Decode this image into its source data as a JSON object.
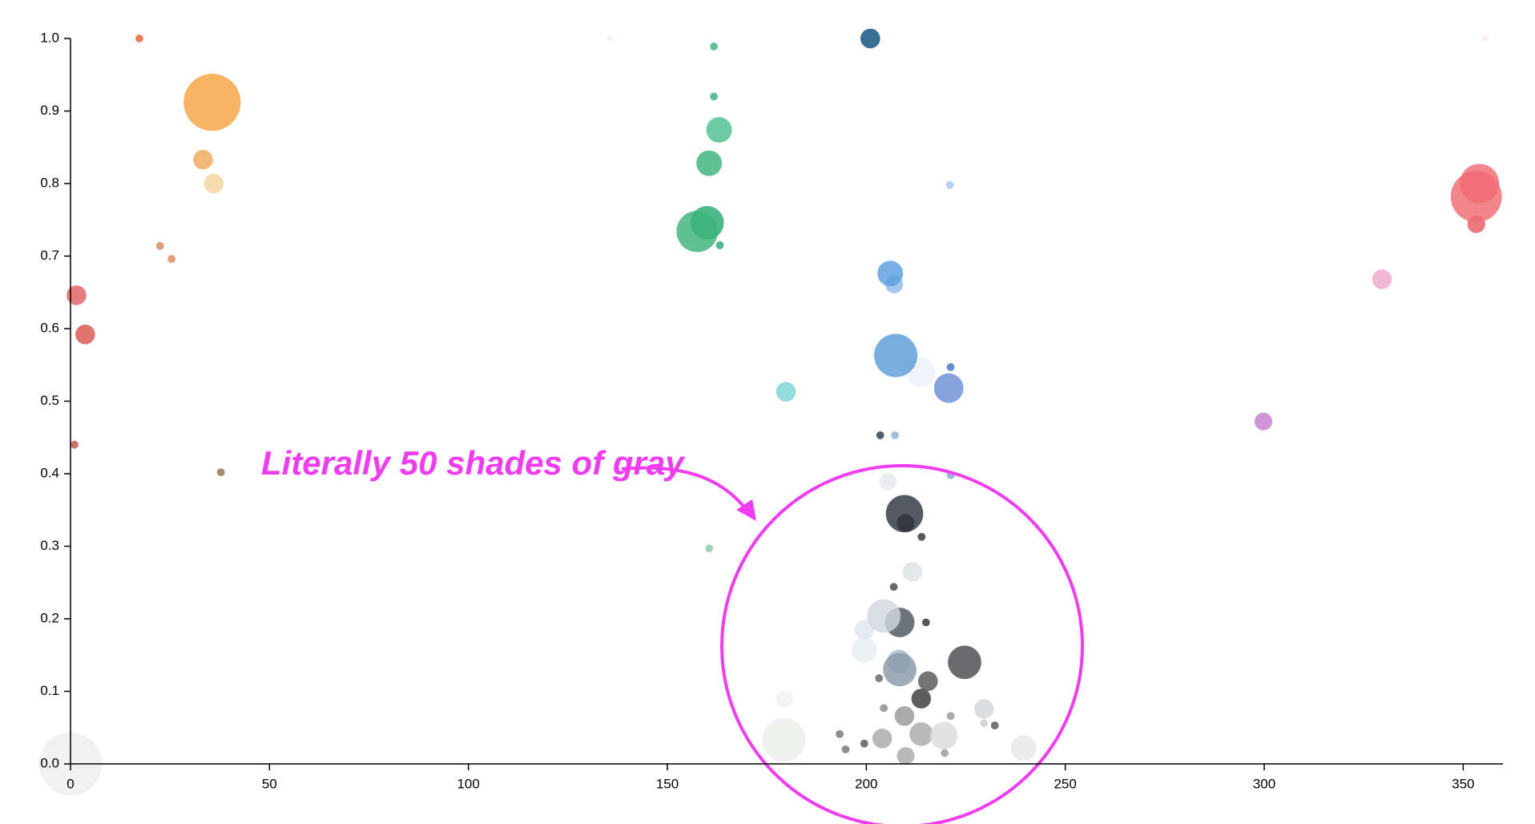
{
  "chart_data": {
    "type": "scatter",
    "annotation": "Literally 50 shades of gray",
    "xlim": [
      0,
      360
    ],
    "xticks": [
      0,
      50,
      100,
      150,
      200,
      250,
      300,
      350
    ],
    "ylim": [
      0,
      1
    ],
    "yticks": [
      {
        "value": 0,
        "label": "0.0"
      },
      0.1,
      0.2,
      0.3,
      0.4,
      0.5,
      0.6,
      0.7,
      0.8,
      0.9,
      {
        "value": 1,
        "label": "1.0"
      }
    ],
    "x": [
      17.3,
      35.6,
      33.3,
      36,
      22.5,
      25.4,
      1.5,
      3.7,
      1,
      37.8,
      0,
      161.7,
      161.7,
      163,
      160.5,
      157.5,
      160,
      163.2,
      160.5,
      135.6,
      201,
      221,
      206,
      207,
      207.4,
      213.8,
      220.7,
      221.2,
      179.8,
      203.5,
      207.2,
      221.2,
      205.4,
      209.6,
      209.9,
      213.9,
      211.6,
      206.9,
      204.4,
      208.4,
      215,
      199.5,
      199.5,
      224.7,
      208.4,
      208.2,
      215.5,
      203.2,
      213.8,
      229.6,
      179.5,
      209.6,
      204.4,
      221.2,
      179.3,
      219.5,
      213.8,
      204,
      239.5,
      209.9,
      194.8,
      193.3,
      199.5,
      232.3,
      229.6,
      219.7,
      354.1,
      353.3,
      353.3,
      355.6,
      329.6,
      299.8
    ],
    "values": [
      1.0,
      0.912,
      0.833,
      0.8,
      0.714,
      0.696,
      0.646,
      0.592,
      0.44,
      0.402,
      0,
      0.989,
      0.92,
      0.874,
      0.828,
      0.734,
      0.746,
      0.715,
      0.297,
      1.0,
      1.0,
      0.798,
      0.676,
      0.661,
      0.563,
      0.54,
      0.518,
      0.547,
      0.513,
      0.453,
      0.453,
      0.398,
      0.389,
      0.345,
      0.332,
      0.313,
      0.265,
      0.244,
      0.204,
      0.195,
      0.195,
      0.185,
      0.157,
      0.14,
      0.13,
      0.141,
      0.114,
      0.118,
      0.09,
      0.076,
      0.09,
      0.066,
      0.077,
      0.066,
      0.033,
      0.039,
      0.041,
      0.035,
      0.022,
      0.011,
      0.02,
      0.041,
      0.028,
      0.053,
      0.056,
      0.015,
      0.8,
      0.782,
      0.744,
      1.0,
      0.668,
      0.472
    ],
    "sizes": [
      4,
      29,
      10,
      10,
      4,
      4,
      10,
      10,
      4,
      4,
      32,
      4,
      4,
      13,
      13,
      21,
      17,
      4,
      4,
      3,
      10,
      4,
      13,
      9,
      22,
      15,
      15,
      4,
      10,
      4,
      4,
      4,
      9,
      19,
      9,
      4,
      10,
      4,
      17,
      15,
      4,
      10,
      13,
      17,
      17,
      12,
      10,
      4,
      10,
      10,
      9,
      10,
      4,
      4,
      22,
      14,
      12,
      10,
      13,
      9,
      4,
      4,
      4,
      4,
      4,
      4,
      20,
      26,
      9,
      3,
      10,
      9
    ],
    "colors": [
      "#e8643a",
      "#f5a442",
      "#f0a85a",
      "#f5d3a0",
      "#d9875a",
      "#d98a5a",
      "#e06060",
      "#d9574f",
      "#c0504d",
      "#8a7a4a",
      "#eeeeee",
      "#3cb37a",
      "#3cb37a",
      "#4dbf8f",
      "#3cb37a",
      "#3cb37a",
      "#2aaa70",
      "#2aaa70",
      "#8cc9a7",
      "#e6f7ee",
      "#0b4f7c",
      "#a9c7ee",
      "#5b9fe0",
      "#8fbbe8",
      "#5b9bd8",
      "#eef2f8",
      "#6b8fd6",
      "#4a78c8",
      "#7dd3d3",
      "#2a3a4a",
      "#8ab4d8",
      "#7fa8d0",
      "#e6e9ee",
      "#2e3640",
      "#1a2530",
      "#333333",
      "#dde3e6",
      "#444444",
      "#d0d8df",
      "#4a5560",
      "#333333",
      "#dfe6ea",
      "#e8eef0",
      "#4a4a4e",
      "#8a9aa8",
      "#aab8c4",
      "#555555",
      "#666666",
      "#3a3a3a",
      "#d4d6d8",
      "#f2f4f2",
      "#999999",
      "#888888",
      "#999999",
      "#eceeea",
      "#dcdcdc",
      "#aaaaaa",
      "#aaaaaa",
      "#e6e6e6",
      "#aaaaaa",
      "#777777",
      "#777777",
      "#555555",
      "#555555",
      "#cccccc",
      "#999999",
      "#f06b73",
      "#f06b73",
      "#e85a63",
      "#fde6e8",
      "#f0a8cc",
      "#c77ad0"
    ]
  }
}
